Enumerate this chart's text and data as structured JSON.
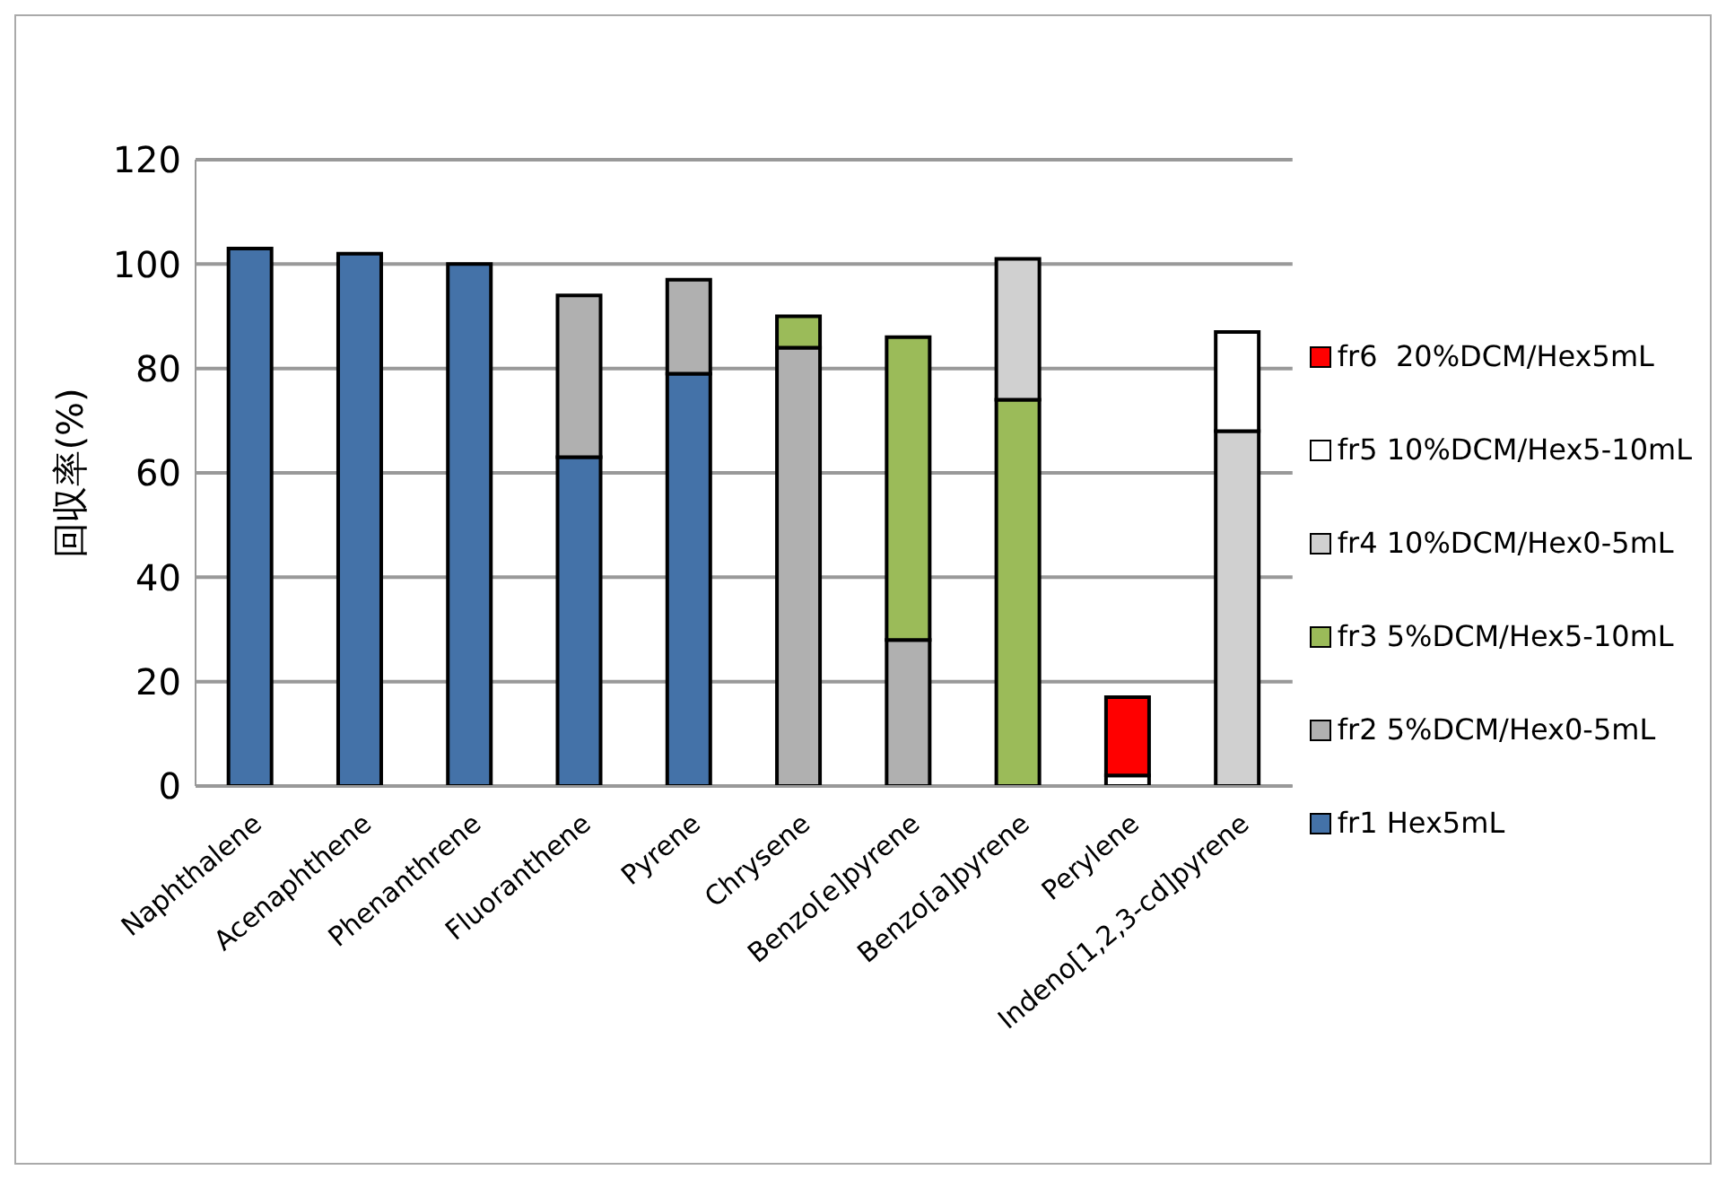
{
  "chart_data": {
    "type": "bar",
    "stacked": true,
    "ylabel": "回収率(%)",
    "categories": [
      "Naphthalene",
      "Acenaphthene",
      "Phenanthrene",
      "Fluoranthene",
      "Pyrene",
      "Chrysene",
      "Benzo[e]pyrene",
      "Benzo[a]pyrene",
      "Perylene",
      "Indeno[1,2,3-cd]pyrene"
    ],
    "series": [
      {
        "name": "fr1 Hex5mL",
        "color": "#4472a8",
        "values": [
          103,
          102,
          100,
          63,
          79,
          null,
          null,
          null,
          null,
          null
        ]
      },
      {
        "name": "fr2 5%DCM/Hex0-5mL",
        "color": "#b0b0b0",
        "values": [
          null,
          null,
          null,
          31,
          18,
          84,
          28,
          null,
          null,
          null
        ]
      },
      {
        "name": "fr3 5%DCM/Hex5-10mL",
        "color": "#9bbb59",
        "values": [
          null,
          null,
          null,
          null,
          null,
          6,
          58,
          74,
          null,
          null
        ]
      },
      {
        "name": "fr4 10%DCM/Hex0-5mL",
        "color": "#d0d0d0",
        "values": [
          null,
          null,
          null,
          null,
          null,
          null,
          null,
          27,
          null,
          68
        ]
      },
      {
        "name": "fr5 10%DCM/Hex5-10mL",
        "color": "#ffffff",
        "values": [
          null,
          null,
          null,
          null,
          null,
          null,
          null,
          null,
          2,
          19
        ]
      },
      {
        "name": "fr6  20%DCM/Hex5mL",
        "color": "#ff0000",
        "values": [
          null,
          null,
          null,
          null,
          null,
          null,
          null,
          null,
          15,
          null
        ]
      }
    ],
    "ylim": [
      0,
      120
    ],
    "yticks": [
      0,
      20,
      40,
      60,
      80,
      100,
      120
    ],
    "grid": "y",
    "legend": "right"
  }
}
